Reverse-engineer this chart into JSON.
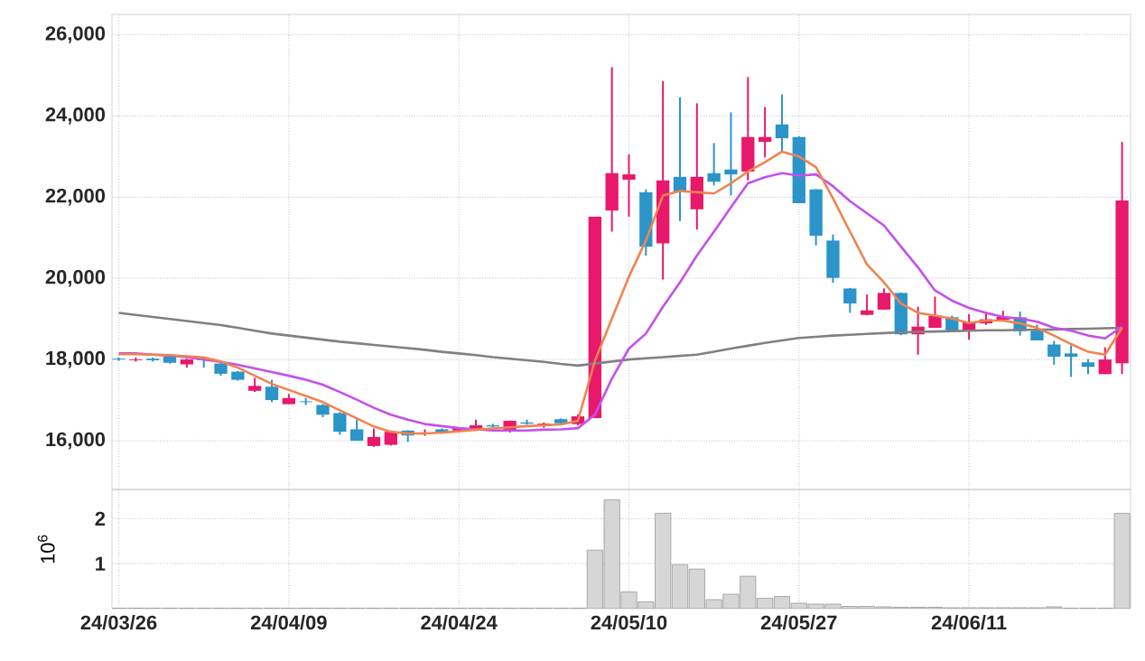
{
  "chart_data": [
    {
      "type": "candlestick",
      "ohlc": [
        [
          18020,
          18050,
          17970,
          18000
        ],
        [
          17980,
          18050,
          17950,
          18000
        ],
        [
          18020,
          18050,
          17950,
          17980
        ],
        [
          18080,
          18100,
          17900,
          17920
        ],
        [
          17880,
          18020,
          17800,
          18000
        ],
        [
          18000,
          18010,
          17800,
          17980
        ],
        [
          17900,
          17920,
          17600,
          17650
        ],
        [
          17700,
          17720,
          17480,
          17500
        ],
        [
          17230,
          17550,
          17200,
          17350
        ],
        [
          17330,
          17500,
          16950,
          17000
        ],
        [
          16900,
          17150,
          16900,
          17050
        ],
        [
          16970,
          17050,
          16880,
          16950
        ],
        [
          16880,
          16900,
          16580,
          16640
        ],
        [
          16680,
          16700,
          16150,
          16220
        ],
        [
          16280,
          16530,
          16000,
          16000
        ],
        [
          15870,
          16300,
          15850,
          16090
        ],
        [
          15900,
          16250,
          15880,
          16220
        ],
        [
          16250,
          16260,
          15970,
          16130
        ],
        [
          16160,
          16280,
          16120,
          16200
        ],
        [
          16280,
          16300,
          16170,
          16190
        ],
        [
          16250,
          16330,
          16230,
          16310
        ],
        [
          16260,
          16520,
          16240,
          16380
        ],
        [
          16380,
          16420,
          16330,
          16350
        ],
        [
          16230,
          16500,
          16200,
          16490
        ],
        [
          16450,
          16520,
          16400,
          16420
        ],
        [
          16360,
          16450,
          16320,
          16420
        ],
        [
          16530,
          16550,
          16420,
          16430
        ],
        [
          16410,
          16650,
          16380,
          16600
        ],
        [
          16560,
          21520,
          16560,
          21520
        ],
        [
          21670,
          25200,
          21150,
          22590
        ],
        [
          22430,
          23050,
          21520,
          22560
        ],
        [
          22120,
          22190,
          20560,
          20780
        ],
        [
          20860,
          24860,
          19970,
          22410
        ],
        [
          22500,
          24460,
          21410,
          22120
        ],
        [
          21700,
          24310,
          21200,
          22500
        ],
        [
          22590,
          23330,
          22290,
          22380
        ],
        [
          22680,
          24090,
          22040,
          22560
        ],
        [
          22630,
          24960,
          22410,
          23480
        ],
        [
          23360,
          24220,
          22980,
          23480
        ],
        [
          23790,
          24530,
          23120,
          23450
        ],
        [
          23480,
          23500,
          21850,
          21850
        ],
        [
          22190,
          22200,
          20810,
          21050
        ],
        [
          20930,
          21080,
          19890,
          20010
        ],
        [
          19750,
          19760,
          19150,
          19380
        ],
        [
          19100,
          19600,
          19090,
          19210
        ],
        [
          19230,
          19750,
          19230,
          19640
        ],
        [
          19640,
          19650,
          18600,
          18620
        ],
        [
          18620,
          19300,
          18120,
          18810
        ],
        [
          18780,
          19550,
          18780,
          19080
        ],
        [
          19040,
          19080,
          18700,
          18710
        ],
        [
          18710,
          19120,
          18490,
          18930
        ],
        [
          18890,
          19180,
          18850,
          18990
        ],
        [
          18980,
          19200,
          18960,
          19050
        ],
        [
          19040,
          19180,
          18590,
          18700
        ],
        [
          18710,
          18860,
          18470,
          18470
        ],
        [
          18370,
          18460,
          17870,
          18070
        ],
        [
          18150,
          18350,
          17570,
          18070
        ],
        [
          17930,
          18010,
          17640,
          17820
        ],
        [
          17640,
          18300,
          17640,
          18000
        ],
        [
          17910,
          23360,
          17640,
          21920
        ]
      ],
      "colors": [
        "#2b94c8",
        "#e8186a",
        "#2b94c8",
        "#2b94c8",
        "#e8186a",
        "#2b94c8",
        "#2b94c8",
        "#2b94c8",
        "#e8186a",
        "#2b94c8",
        "#e8186a",
        "#2b94c8",
        "#2b94c8",
        "#2b94c8",
        "#2b94c8",
        "#e8186a",
        "#e8186a",
        "#2b94c8",
        "#e8186a",
        "#2b94c8",
        "#e8186a",
        "#e8186a",
        "#2b94c8",
        "#e8186a",
        "#2b94c8",
        "#e8186a",
        "#2b94c8",
        "#e8186a",
        "#e8186a",
        "#e8186a",
        "#e8186a",
        "#2b94c8",
        "#e8186a",
        "#2b94c8",
        "#e8186a",
        "#2b94c8",
        "#2b94c8",
        "#e8186a",
        "#e8186a",
        "#2b94c8",
        "#2b94c8",
        "#2b94c8",
        "#2b94c8",
        "#2b94c8",
        "#e8186a",
        "#e8186a",
        "#2b94c8",
        "#e8186a",
        "#e8186a",
        "#2b94c8",
        "#e8186a",
        "#e8186a",
        "#e8186a",
        "#2b94c8",
        "#2b94c8",
        "#2b94c8",
        "#2b94c8",
        "#2b94c8",
        "#e8186a",
        "#e8186a"
      ],
      "series": [
        {
          "type": "line",
          "color": "#f0834f",
          "values": [
            18130,
            18130,
            18120,
            18110,
            18080,
            18050,
            17950,
            17800,
            17600,
            17400,
            17250,
            17100,
            16950,
            16750,
            16550,
            16350,
            16220,
            16180,
            16180,
            16200,
            16230,
            16270,
            16300,
            16330,
            16360,
            16380,
            16400,
            16490,
            17970,
            19010,
            20040,
            20930,
            22040,
            22150,
            22120,
            22090,
            22340,
            22630,
            22860,
            23120,
            23000,
            22740,
            21970,
            21150,
            20340,
            19900,
            19380,
            19150,
            19080,
            19010,
            18900,
            18960,
            18960,
            18890,
            18780,
            18590,
            18380,
            18190,
            18120,
            18780
          ]
        },
        {
          "type": "line",
          "color": "#c450ea",
          "values": [
            18150,
            18150,
            18120,
            18100,
            18060,
            18000,
            17940,
            17870,
            17780,
            17690,
            17600,
            17500,
            17380,
            17200,
            17010,
            16810,
            16640,
            16520,
            16410,
            16360,
            16310,
            16280,
            16250,
            16250,
            16250,
            16270,
            16280,
            16310,
            16640,
            17530,
            18270,
            18640,
            19300,
            19900,
            20560,
            21150,
            21750,
            22340,
            22490,
            22590,
            22530,
            22560,
            22270,
            21900,
            21600,
            21300,
            20780,
            20270,
            19700,
            19450,
            19270,
            19150,
            19050,
            19010,
            18930,
            18780,
            18710,
            18590,
            18520,
            18810
          ]
        },
        {
          "type": "line",
          "color": "#808080",
          "values": [
            19150,
            19100,
            19050,
            19000,
            18950,
            18900,
            18850,
            18780,
            18710,
            18640,
            18590,
            18540,
            18490,
            18440,
            18400,
            18360,
            18320,
            18280,
            18240,
            18190,
            18150,
            18110,
            18060,
            18020,
            17980,
            17940,
            17890,
            17850,
            17900,
            17950,
            18000,
            18030,
            18060,
            18090,
            18120,
            18190,
            18270,
            18340,
            18410,
            18470,
            18530,
            18560,
            18590,
            18610,
            18630,
            18650,
            18670,
            18680,
            18690,
            18700,
            18710,
            18720,
            18720,
            18730,
            18730,
            18740,
            18750,
            18760,
            18770,
            18780
          ]
        }
      ],
      "ylim": [
        14800,
        26500
      ],
      "yticks": [
        {
          "value": 16000,
          "label": "16,000"
        },
        {
          "value": 18000,
          "label": "18,000"
        },
        {
          "value": 20000,
          "label": "20,000"
        },
        {
          "value": 22000,
          "label": "22,000"
        },
        {
          "value": 24000,
          "label": "24,000"
        },
        {
          "value": 26000,
          "label": "26,000"
        }
      ],
      "grid": true,
      "tick_labels": "y"
    },
    {
      "type": "bar",
      "categories": [
        "24/03/26",
        null,
        null,
        null,
        null,
        null,
        null,
        null,
        null,
        null,
        "24/04/09",
        null,
        null,
        null,
        null,
        null,
        null,
        null,
        null,
        null,
        "24/04/24",
        null,
        null,
        null,
        null,
        null,
        null,
        null,
        null,
        null,
        "24/05/10",
        null,
        null,
        null,
        null,
        null,
        null,
        null,
        null,
        null,
        "24/05/27",
        null,
        null,
        null,
        null,
        null,
        null,
        null,
        null,
        null,
        "24/06/11",
        null,
        null,
        null,
        null,
        null,
        null,
        null,
        null,
        null
      ],
      "values": [
        0.01,
        0.01,
        0.01,
        0.01,
        0.01,
        0.01,
        0.01,
        0.01,
        0.01,
        0.01,
        0.01,
        0.01,
        0.01,
        0.01,
        0.01,
        0.01,
        0.01,
        0.01,
        0.01,
        0.01,
        0.01,
        0.01,
        0.01,
        0.01,
        0.01,
        0.01,
        0.01,
        0.01,
        1.3,
        2.42,
        0.37,
        0.15,
        2.12,
        0.98,
        0.88,
        0.2,
        0.32,
        0.72,
        0.23,
        0.27,
        0.12,
        0.1,
        0.1,
        0.05,
        0.05,
        0.04,
        0.03,
        0.03,
        0.03,
        0.02,
        0.02,
        0.02,
        0.02,
        0.02,
        0.02,
        0.04,
        0.01,
        0.01,
        0.01,
        2.12
      ],
      "color": "#d6d6d6",
      "ylabel": "10$^{6}$",
      "ylim": [
        0,
        2.65
      ],
      "yticks": [
        1,
        2
      ],
      "grid": true
    }
  ]
}
